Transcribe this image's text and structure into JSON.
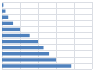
{
  "chart_data": {
    "type": "bar",
    "orientation": "horizontal",
    "categories": [
      null,
      null,
      null,
      null,
      null,
      null,
      null,
      null,
      null,
      null,
      null
    ],
    "values": [
      100,
      78,
      68,
      60,
      52,
      40,
      26,
      16,
      9,
      5,
      2
    ],
    "color": "#4f81bd",
    "xlim": [
      0,
      130
    ],
    "xticks": [
      0,
      26,
      52,
      78,
      104,
      130
    ],
    "grid": true,
    "tick_labels": false
  }
}
